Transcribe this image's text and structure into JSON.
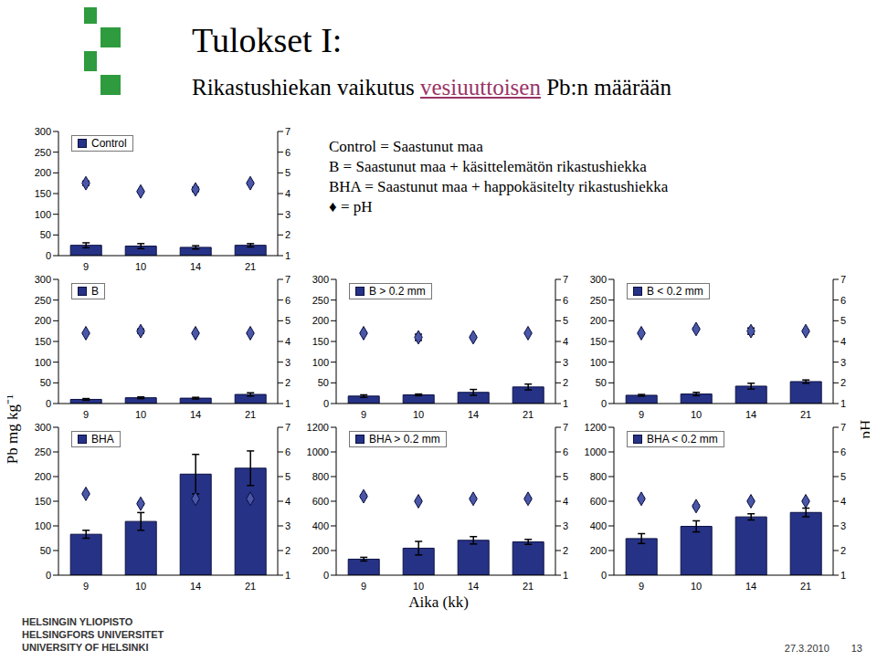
{
  "title": "Tulokset I:",
  "subtitle": "Rikastushiekan vaikutus vesiuuttoisen Pb:n määrään",
  "subtitle_highlight": "vesiuuttoisen",
  "notes": [
    "Control = Saastunut maa",
    "B = Saastunut maa + käsittelemätön rikastushiekka",
    "BHA = Saastunut maa + happokäsitelty rikastushiekka",
    "♦ = pH"
  ],
  "x_label": "Aika (kk)",
  "y_label": "Pb mg kg⁻¹",
  "y2_label": "pH",
  "footer": {
    "university": [
      "HELSINGIN YLIOPISTO",
      "HELSINGFORS UNIVERSITET",
      "UNIVERSITY OF HELSINKI"
    ],
    "date": "27.3.2010",
    "page": 13
  },
  "chart_data": [
    {
      "type": "bar",
      "categories": [
        "9",
        "10",
        "14",
        "21"
      ],
      "ylim": [
        0,
        300
      ],
      "yticks": [
        0,
        50,
        100,
        150,
        200,
        250,
        300
      ],
      "y2lim": [
        1,
        7
      ],
      "y2ticks": [
        1,
        2,
        3,
        4,
        5,
        6,
        7
      ],
      "legend": "upper left",
      "series": [
        {
          "name": "Control",
          "type": "bar",
          "color": "#263286",
          "values": [
            25,
            23,
            20,
            25
          ],
          "errors": [
            6,
            6,
            4,
            4
          ]
        },
        {
          "type": "scatter",
          "axis": "y2",
          "marker": "diamond",
          "color": "#4a56a8",
          "values": [
            4.5,
            4.1,
            4.2,
            4.5
          ],
          "errors": [
            0.1,
            0.05,
            0.1,
            0.05
          ]
        }
      ]
    },
    {
      "type": "bar",
      "categories": [
        "9",
        "10",
        "14",
        "21"
      ],
      "ylim": [
        0,
        300
      ],
      "yticks": [
        0,
        50,
        100,
        150,
        200,
        250,
        300
      ],
      "y2lim": [
        1,
        7
      ],
      "y2ticks": [
        1,
        2,
        3,
        4,
        5,
        6,
        7
      ],
      "legend": "upper left",
      "series": [
        {
          "name": "B",
          "type": "bar",
          "color": "#263286",
          "values": [
            10,
            14,
            13,
            22
          ],
          "errors": [
            2,
            2,
            2,
            4
          ]
        },
        {
          "type": "scatter",
          "axis": "y2",
          "marker": "diamond",
          "color": "#4a56a8",
          "values": [
            4.4,
            4.5,
            4.4,
            4.4
          ],
          "errors": [
            0.05,
            0.1,
            0.05,
            0.05
          ]
        }
      ]
    },
    {
      "type": "bar",
      "categories": [
        "9",
        "10",
        "14",
        "21"
      ],
      "ylim": [
        0,
        300
      ],
      "yticks": [
        0,
        50,
        100,
        150,
        200,
        250,
        300
      ],
      "y2lim": [
        1,
        7
      ],
      "y2ticks": [
        1,
        2,
        3,
        4,
        5,
        6,
        7
      ],
      "legend": "upper left",
      "series": [
        {
          "name": "B > 0.2 mm",
          "type": "bar",
          "color": "#263286",
          "values": [
            18,
            21,
            27,
            40
          ],
          "errors": [
            3,
            2,
            7,
            7
          ]
        },
        {
          "type": "scatter",
          "axis": "y2",
          "marker": "diamond",
          "color": "#4a56a8",
          "values": [
            4.4,
            4.2,
            4.2,
            4.4
          ],
          "errors": [
            0.05,
            0.15,
            0.05,
            0.05
          ]
        }
      ]
    },
    {
      "type": "bar",
      "categories": [
        "9",
        "10",
        "14",
        "21"
      ],
      "ylim": [
        0,
        300
      ],
      "yticks": [
        0,
        50,
        100,
        150,
        200,
        250,
        300
      ],
      "y2lim": [
        1,
        7
      ],
      "y2ticks": [
        1,
        2,
        3,
        4,
        5,
        6,
        7
      ],
      "legend": "upper left",
      "series": [
        {
          "name": "B < 0.2 mm",
          "type": "bar",
          "color": "#263286",
          "values": [
            20,
            23,
            42,
            53
          ],
          "errors": [
            2,
            4,
            7,
            4
          ]
        },
        {
          "type": "scatter",
          "axis": "y2",
          "marker": "diamond",
          "color": "#4a56a8",
          "values": [
            4.4,
            4.6,
            4.5,
            4.5
          ],
          "errors": [
            0.05,
            0.05,
            0.15,
            0.05
          ]
        }
      ]
    },
    {
      "type": "bar",
      "categories": [
        "9",
        "10",
        "14",
        "21"
      ],
      "ylim": [
        0,
        300
      ],
      "yticks": [
        0,
        50,
        100,
        150,
        200,
        250,
        300
      ],
      "y2lim": [
        1,
        7
      ],
      "y2ticks": [
        1,
        2,
        3,
        4,
        5,
        6,
        7
      ],
      "legend": "upper left",
      "series": [
        {
          "name": "BHA",
          "type": "bar",
          "color": "#263286",
          "values": [
            83,
            109,
            205,
            217
          ],
          "errors": [
            8,
            18,
            40,
            35
          ]
        },
        {
          "type": "scatter",
          "axis": "y2",
          "marker": "diamond",
          "color": "#4a56a8",
          "values": [
            4.3,
            3.9,
            4.1,
            4.1
          ],
          "errors": [
            0.05,
            0.05,
            0.05,
            0.05
          ]
        }
      ]
    },
    {
      "type": "bar",
      "categories": [
        "9",
        "10",
        "14",
        "21"
      ],
      "ylim": [
        0,
        1200
      ],
      "yticks": [
        0,
        200,
        400,
        600,
        800,
        1000,
        1200
      ],
      "y2lim": [
        1,
        7
      ],
      "y2ticks": [
        1,
        2,
        3,
        4,
        5,
        6,
        7
      ],
      "legend": "upper left",
      "series": [
        {
          "name": "BHA > 0.2 mm",
          "type": "bar",
          "color": "#263286",
          "values": [
            130,
            219,
            283,
            270
          ],
          "errors": [
            15,
            55,
            30,
            20
          ]
        },
        {
          "type": "scatter",
          "axis": "y2",
          "marker": "diamond",
          "color": "#4a56a8",
          "values": [
            4.2,
            4.0,
            4.1,
            4.1
          ],
          "errors": [
            0.05,
            0.05,
            0.05,
            0.05
          ]
        }
      ]
    },
    {
      "type": "bar",
      "categories": [
        "9",
        "10",
        "14",
        "21"
      ],
      "ylim": [
        0,
        1200
      ],
      "yticks": [
        0,
        200,
        400,
        600,
        800,
        1000,
        1200
      ],
      "y2lim": [
        1,
        7
      ],
      "y2ticks": [
        1,
        2,
        3,
        4,
        5,
        6,
        7
      ],
      "legend": "upper left",
      "series": [
        {
          "name": "BHA < 0.2 mm",
          "type": "bar",
          "color": "#263286",
          "values": [
            297,
            396,
            473,
            509
          ],
          "errors": [
            40,
            45,
            25,
            35
          ]
        },
        {
          "type": "scatter",
          "axis": "y2",
          "marker": "diamond",
          "color": "#4a56a8",
          "values": [
            4.1,
            3.8,
            4.0,
            4.0
          ],
          "errors": [
            0.05,
            0.05,
            0.05,
            0.05
          ]
        }
      ]
    }
  ]
}
